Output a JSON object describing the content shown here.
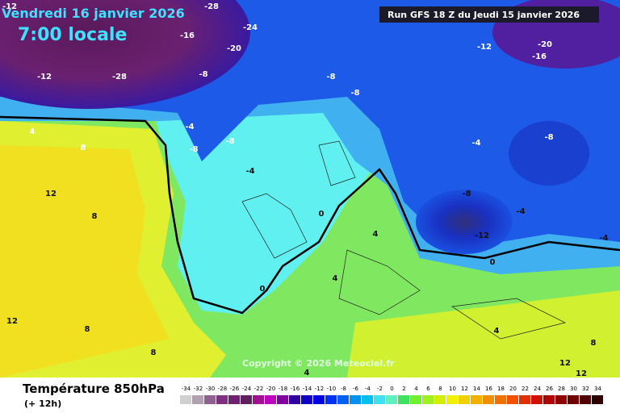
{
  "header": {
    "date": "Vendredi 16 janvier 2026",
    "time": "7:00 locale",
    "run": "Run GFS 18 Z du Jeudi 15 janvier 2026"
  },
  "copyright": "Copyright © 2026 Meteociel.fr",
  "footer": {
    "title": "Température 850hPa",
    "lead": "(+ 12h)"
  },
  "contour_labels": [
    "-12",
    "-28",
    "-16",
    "-20",
    "-24",
    "-28",
    "-12",
    "-8",
    "-4",
    "-8",
    "-8",
    "-4",
    "-8",
    "-8",
    "-12",
    "-16",
    "-20",
    "-8",
    "-4",
    "-8",
    "-12",
    "-4",
    "0",
    "0",
    "0",
    "4",
    "8",
    "12",
    "8",
    "4",
    "4",
    "12",
    "8",
    "8",
    "4",
    "12",
    "12",
    "8",
    "4",
    "-4"
  ],
  "scale": {
    "values": [
      -34,
      -32,
      -30,
      -28,
      -26,
      -24,
      -22,
      -20,
      -18,
      -16,
      -14,
      -12,
      -10,
      -8,
      -6,
      -4,
      -2,
      0,
      2,
      4,
      6,
      8,
      10,
      12,
      14,
      16,
      18,
      20,
      22,
      24,
      26,
      28,
      30,
      32,
      34
    ],
    "colors": [
      "#d0d0d0",
      "#b0a0b0",
      "#906090",
      "#803080",
      "#702070",
      "#602060",
      "#a01090",
      "#c000c0",
      "#8000a0",
      "#3000a0",
      "#1000c0",
      "#0000e0",
      "#0030f0",
      "#0060f0",
      "#0090f0",
      "#00c0f0",
      "#40e0f0",
      "#60f0c0",
      "#40e060",
      "#70f030",
      "#a0f020",
      "#d0f000",
      "#f0f000",
      "#f0d000",
      "#f0b000",
      "#f09000",
      "#f07000",
      "#f05000",
      "#e03000",
      "#d01000",
      "#b00000",
      "#900000",
      "#700000",
      "#500000",
      "#300000"
    ]
  }
}
